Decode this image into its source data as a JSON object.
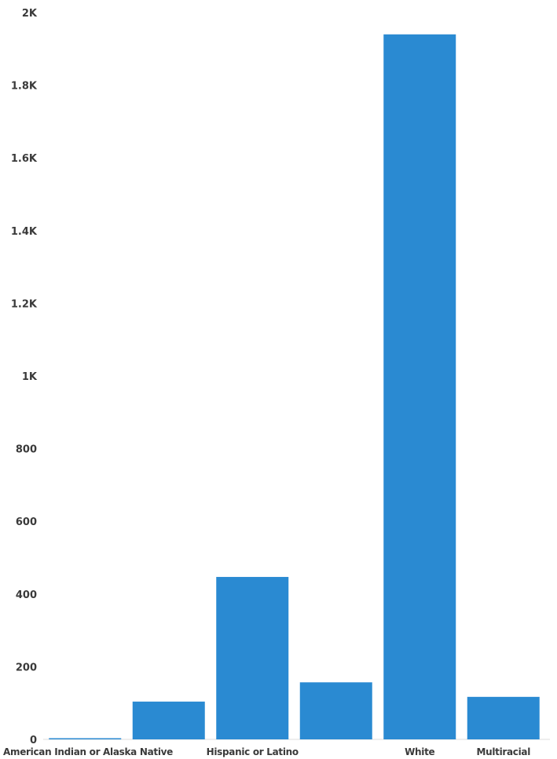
{
  "chart_data": {
    "type": "bar",
    "categories": [
      "American Indian or Alaska Native",
      "",
      "Hispanic or Latino",
      "",
      "White",
      "Multiracial"
    ],
    "values": [
      2,
      104,
      447,
      157,
      1940,
      117
    ],
    "ylim": [
      0,
      2000
    ],
    "yticks": [
      "0",
      "200",
      "400",
      "600",
      "800",
      "1K",
      "1.2K",
      "1.4K",
      "1.6K",
      "1.8K",
      "2K"
    ],
    "grid": false,
    "legend": "none",
    "colors": {
      "bar": "#2a8ad2",
      "baseline": "#dcdcdc",
      "text": "#3a3a3a"
    }
  }
}
